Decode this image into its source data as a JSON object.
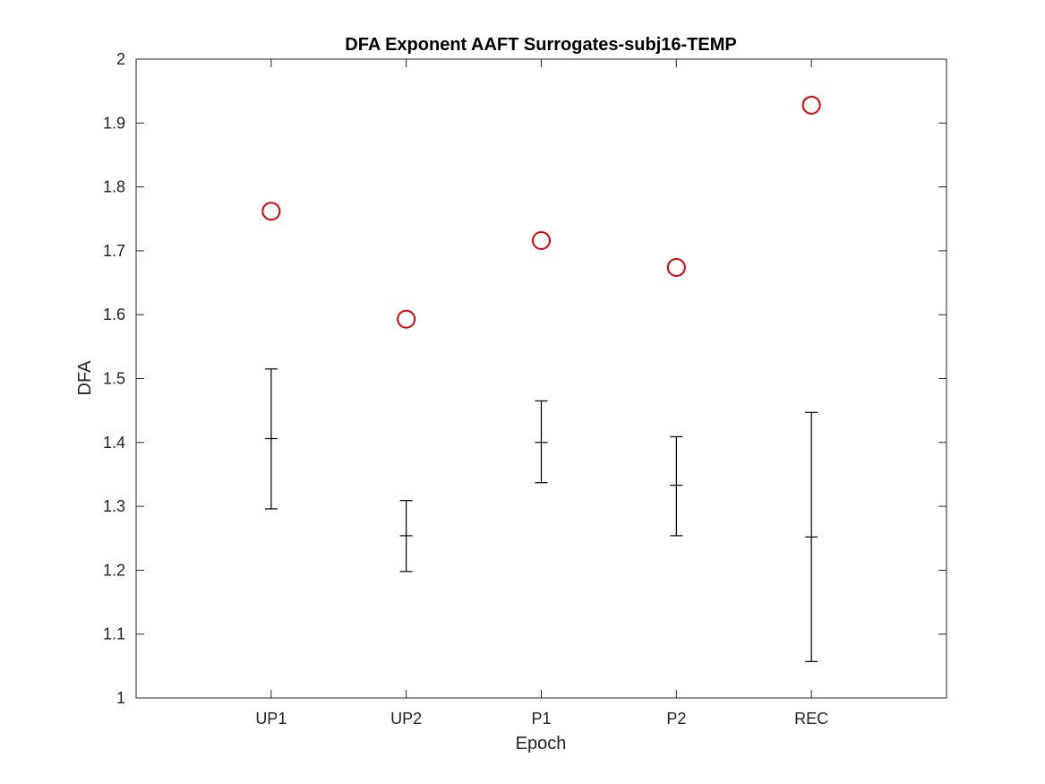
{
  "chart_data": {
    "type": "scatter",
    "title": "DFA Exponent AAFT Surrogates-subj16-TEMP",
    "xlabel": "Epoch",
    "ylabel": "DFA",
    "categories": [
      "UP1",
      "UP2",
      "P1",
      "P2",
      "REC"
    ],
    "xlim": [
      0,
      6
    ],
    "ylim": [
      1,
      2
    ],
    "yticks": [
      "1",
      "1.1",
      "1.2",
      "1.3",
      "1.4",
      "1.5",
      "1.6",
      "1.7",
      "1.8",
      "1.9",
      "2"
    ],
    "grid": false,
    "series": [
      {
        "marker": "circle",
        "color": "#e00000",
        "values": [
          1.762,
          1.593,
          1.716,
          1.674,
          1.928
        ]
      },
      {
        "marker": "errorbar",
        "color": "#000000",
        "values": [
          1.406,
          1.254,
          1.4,
          1.333,
          1.252
        ],
        "lower": [
          1.296,
          1.198,
          1.337,
          1.254,
          1.057
        ],
        "upper": [
          1.515,
          1.309,
          1.465,
          1.409,
          1.447
        ]
      }
    ]
  }
}
